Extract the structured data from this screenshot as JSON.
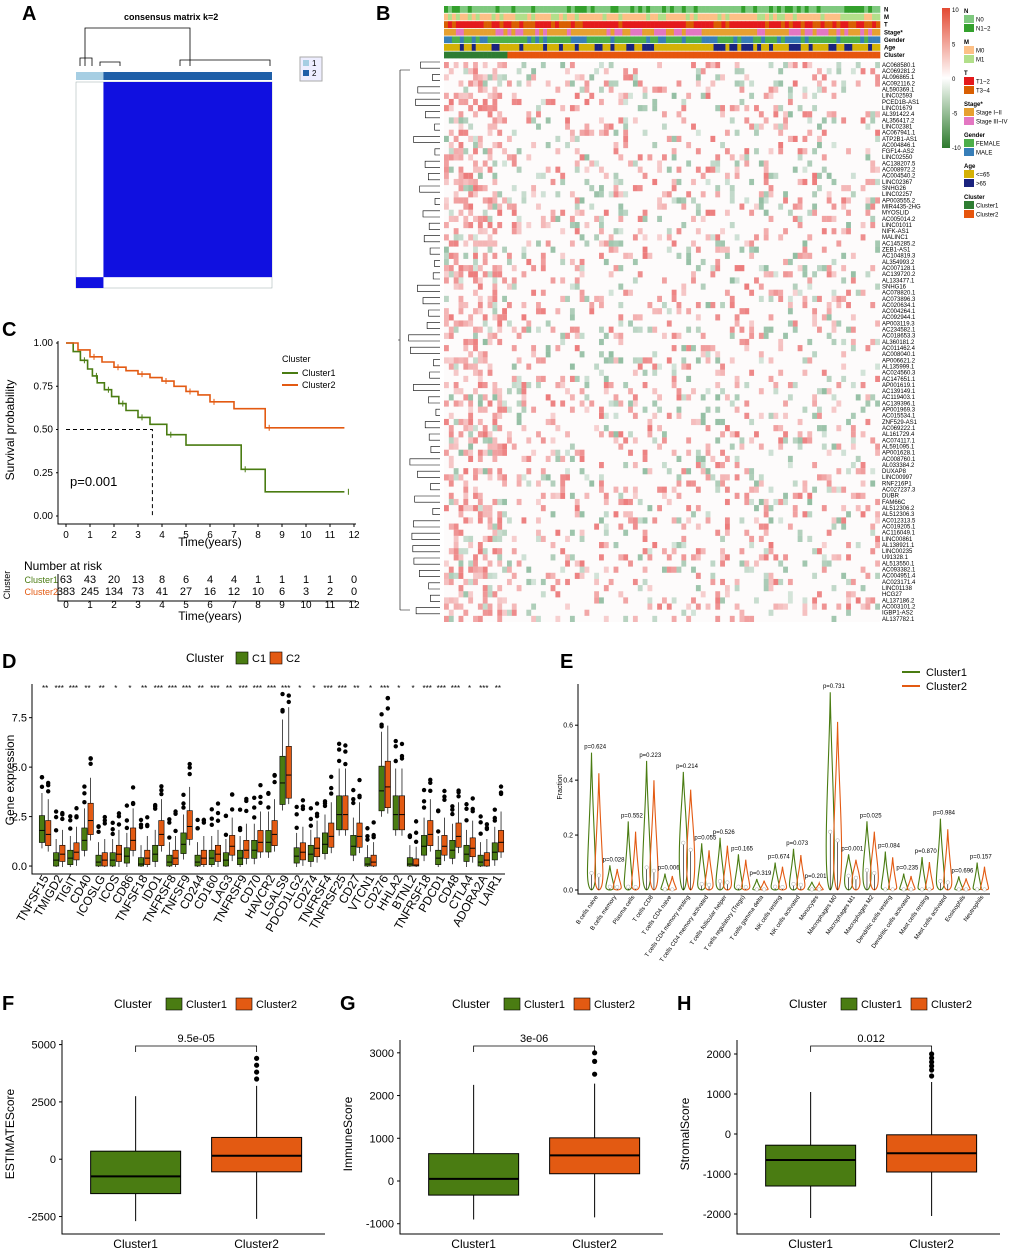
{
  "panels": {
    "A": {
      "letter": "A",
      "title": "consensus matrix k=2",
      "legend": [
        {
          "label": "1",
          "color": "#a6cee3"
        },
        {
          "label": "2",
          "color": "#1f5fa8"
        }
      ],
      "matrix_color": "#1010e0",
      "chart_data": {
        "type": "heatmap",
        "title": "consensus matrix k=2",
        "clusters": [
          {
            "name": "1",
            "fraction": 0.14
          },
          {
            "name": "2",
            "fraction": 0.86
          }
        ],
        "value_range": [
          0,
          1
        ]
      }
    },
    "B": {
      "letter": "B",
      "annotation_tracks": [
        "N",
        "M",
        "T",
        "Stage*",
        "Gender",
        "Age",
        "Cluster"
      ],
      "colorbar": {
        "ticks": [
          "10",
          "5",
          "0",
          "-5",
          "-10"
        ],
        "colors": [
          "#e34a33",
          "#ffffff",
          "#2c7a2c"
        ]
      },
      "legend_groups": [
        {
          "title": "N",
          "items": [
            {
              "label": "N0",
              "color": "#7fc97f"
            },
            {
              "label": "N1~2",
              "color": "#33a02c"
            }
          ]
        },
        {
          "title": "M",
          "items": [
            {
              "label": "M0",
              "color": "#fdc086"
            },
            {
              "label": "M1",
              "color": "#b2df8a"
            }
          ]
        },
        {
          "title": "T",
          "items": [
            {
              "label": "T1~2",
              "color": "#e41a1c"
            },
            {
              "label": "T3~4",
              "color": "#d95f02"
            }
          ]
        },
        {
          "title": "Stage*",
          "items": [
            {
              "label": "Stage I~II",
              "color": "#e6a030"
            },
            {
              "label": "Stage III~IV",
              "color": "#e377c2"
            }
          ]
        },
        {
          "title": "Gender",
          "items": [
            {
              "label": "FEMALE",
              "color": "#4daf4a"
            },
            {
              "label": "MALE",
              "color": "#377eb8"
            }
          ]
        },
        {
          "title": "Age",
          "items": [
            {
              "label": "<=65",
              "color": "#d4b106"
            },
            {
              "label": ">65",
              "color": "#1a237e"
            }
          ]
        },
        {
          "title": "Cluster",
          "items": [
            {
              "label": "Cluster1",
              "color": "#2e7d32"
            },
            {
              "label": "Cluster2",
              "color": "#e6550d"
            }
          ]
        }
      ],
      "genes": [
        "AC068580.1",
        "AC069281.2",
        "AL096865.1",
        "AC092116.2",
        "AL590369.1",
        "LINC02593",
        "PCED1B-AS1",
        "LINC01679",
        "AL391422.4",
        "AL356417.2",
        "LINC02381",
        "AC067941.1",
        "ATP2B1-AS1",
        "AC004846.1",
        "FGF14-AS2",
        "LINC02550",
        "AC138207.5",
        "AC008972.2",
        "AC004540.2",
        "LINC02367",
        "SNHG26",
        "LINC02257",
        "AP003555.2",
        "MIR4435-2HG",
        "MYOSLID",
        "AC005014.2",
        "LINC01011",
        "NIFK-AS1",
        "MALINC1",
        "AC145285.2",
        "ZEB1-AS1",
        "AC104819.3",
        "AL354993.2",
        "AC007128.1",
        "AC139720.2",
        "AL133477.1",
        "SNHG16",
        "AC078820.1",
        "AC073896.3",
        "AC020634.1",
        "AC004264.1",
        "AC092944.1",
        "AP003119.3",
        "AC234582.1",
        "AC018653.3",
        "AL360181.2",
        "AC011462.4",
        "AC008040.1",
        "AP006621.2",
        "AL135999.1",
        "AC024560.3",
        "AC147651.1",
        "AP001619.1",
        "AC139149.1",
        "AC119403.1",
        "AC139396.1",
        "AP001969.3",
        "AC015534.1",
        "ZNF529-AS1",
        "AC069222.1",
        "AL161729.4",
        "AC074117.1",
        "AL591095.1",
        "AP001628.1",
        "AC008760.1",
        "AL033384.2",
        "DUXAP8",
        "LINC00997",
        "RNF216P1",
        "AC027237.3",
        "DUBR",
        "FAM66C",
        "AL512306.2",
        "AL512306.3",
        "AC012313.5",
        "AC019205.1",
        "AC116049.1",
        "LINC00861",
        "AL138921.1",
        "LINC00235",
        "U91328.1",
        "AL513550.1",
        "AC093382.1",
        "AC004951.4",
        "AC023171.4",
        "LINC01138",
        "HCG27",
        "AL137186.2",
        "AC003101.2",
        "IGBP1-AS2",
        "AL137782.1"
      ]
    },
    "C": {
      "letter": "C",
      "ylabel": "Survival probability",
      "xlabel": "Time(years)",
      "legend_title": "Cluster",
      "pvalue": "p=0.001",
      "risk_title": "Number at risk",
      "risk_axis_label": "Cluster",
      "risk_xlabel": "Time(years)",
      "chart_data": {
        "type": "line",
        "xlabel": "Time(years)",
        "ylabel": "Survival probability",
        "xlim": [
          0,
          12
        ],
        "ylim": [
          0,
          1
        ],
        "xticks": [
          0,
          1,
          2,
          3,
          4,
          5,
          6,
          7,
          8,
          9,
          10,
          11,
          12
        ],
        "yticks": [
          "0.00",
          "0.25",
          "0.50",
          "0.75",
          "1.00"
        ],
        "series": [
          {
            "name": "Cluster1",
            "color": "#4a7c12",
            "x": [
              0,
              0.3,
              0.6,
              0.9,
              1.1,
              1.3,
              1.6,
              1.9,
              2.2,
              2.5,
              3.0,
              3.5,
              4.2,
              5.0,
              7.3,
              8.3,
              11.6
            ],
            "y": [
              1.0,
              0.95,
              0.9,
              0.85,
              0.81,
              0.77,
              0.73,
              0.69,
              0.65,
              0.61,
              0.57,
              0.53,
              0.47,
              0.41,
              0.27,
              0.14,
              0.14
            ]
          },
          {
            "name": "Cluster2",
            "color": "#e35a12",
            "x": [
              0,
              0.5,
              1.0,
              1.5,
              2.0,
              2.5,
              3.0,
              3.5,
              4.0,
              4.5,
              5.0,
              5.5,
              6.0,
              7.0,
              8.3,
              11.6
            ],
            "y": [
              1.0,
              0.96,
              0.92,
              0.89,
              0.86,
              0.84,
              0.82,
              0.8,
              0.78,
              0.75,
              0.72,
              0.7,
              0.66,
              0.62,
              0.51,
              0.51
            ]
          }
        ],
        "median_line": {
          "x": 3.6,
          "y": 0.5
        },
        "risk_table": {
          "times": [
            0,
            1,
            2,
            3,
            4,
            5,
            6,
            7,
            8,
            9,
            10,
            11,
            12
          ],
          "Cluster1": [
            63,
            43,
            20,
            13,
            8,
            6,
            4,
            4,
            1,
            1,
            1,
            1,
            0
          ],
          "Cluster2": [
            383,
            245,
            134,
            73,
            41,
            27,
            16,
            12,
            10,
            6,
            3,
            2,
            0
          ]
        }
      }
    },
    "D": {
      "letter": "D",
      "legend_title": "Cluster",
      "ylabel": "Gene expression",
      "chart_data": {
        "type": "bar",
        "subtype": "boxplot",
        "ylabel": "Gene expression",
        "ylim": [
          -0.2,
          9
        ],
        "yticks": [
          "0.0",
          "2.5",
          "5.0",
          "7.5"
        ],
        "series": [
          {
            "name": "C1",
            "color": "#4a7c12"
          },
          {
            "name": "C2",
            "color": "#e35a12"
          }
        ],
        "categories": [
          "TNFSF15",
          "TMIGD2",
          "TIGIT",
          "CD40",
          "ICOSLG",
          "ICOS",
          "CD86",
          "TNFSF18",
          "IDO1",
          "TNFRSF8",
          "TNFSF9",
          "CD244",
          "CD160",
          "LAG3",
          "TNFRSF9",
          "CD70",
          "HAVCR2",
          "LGALS9",
          "PDCD1LG2",
          "CD274",
          "TNFRSF4",
          "TNFRSF25",
          "CD27",
          "VTCN1",
          "CD276",
          "HHLA2",
          "BTNL2",
          "TNFRSF18",
          "PDCD1",
          "CD48",
          "CTLA4",
          "ADORA2A",
          "LAIR1"
        ],
        "significance": [
          "**",
          "***",
          "***",
          "**",
          "**",
          "*",
          "*",
          "**",
          "***",
          "***",
          "***",
          "**",
          "***",
          "**",
          "***",
          "***",
          "***",
          "***",
          "*",
          "*",
          "***",
          "***",
          "**",
          "*",
          "***",
          "*",
          "*",
          "***",
          "***",
          "***",
          "*",
          "***",
          "**"
        ],
        "C1_median": [
          1.8,
          0.3,
          0.4,
          1.3,
          0.2,
          0.3,
          0.5,
          0.1,
          0.6,
          0.2,
          1.1,
          0.2,
          0.4,
          0.3,
          0.4,
          0.8,
          1.2,
          4.2,
          0.5,
          0.6,
          1.1,
          2.6,
          1.0,
          0.1,
          3.8,
          2.6,
          0.1,
          1.0,
          0.4,
          0.8,
          0.6,
          0.2,
          0.7
        ],
        "C2_median": [
          1.6,
          0.6,
          0.7,
          2.3,
          0.3,
          0.6,
          1.3,
          0.4,
          1.6,
          0.4,
          2.0,
          0.4,
          0.6,
          1.0,
          0.8,
          1.2,
          1.6,
          4.6,
          0.7,
          0.9,
          1.5,
          2.6,
          1.5,
          0.2,
          4.0,
          2.6,
          0.05,
          1.6,
          1.0,
          1.5,
          0.9,
          0.3,
          1.2
        ]
      }
    },
    "E": {
      "letter": "E",
      "ylabel": "Fraction",
      "chart_data": {
        "type": "area",
        "subtype": "violin",
        "ylabel": "Fraction",
        "ylim": [
          0,
          0.75
        ],
        "yticks": [
          "0.0",
          "0.2",
          "0.4",
          "0.6"
        ],
        "series": [
          {
            "name": "Cluster1",
            "color": "#4a7c12"
          },
          {
            "name": "Cluster2",
            "color": "#e35a12"
          }
        ],
        "categories": [
          "B cells naive",
          "B cells memory",
          "Plasma cells",
          "T cells CD8",
          "T cells CD4 naive",
          "T cells CD4 memory resting",
          "T cells CD4 memory activated",
          "T cells follicular helper",
          "T cells regulatory (Tregs)",
          "T cells gamma delta",
          "NK cells resting",
          "NK cells activated",
          "Monocytes",
          "Macrophages M0",
          "Macrophages M1",
          "Macrophages M2",
          "Dendritic cells resting",
          "Dendritic cells activated",
          "Mast cells resting",
          "Mast cells activated",
          "Eosinophils",
          "Neutrophils"
        ],
        "pvalues": [
          "p=0.624",
          "p=0.028",
          "p=0.552",
          "p=0.223",
          "p=0.006",
          "p=0.214",
          "p=0.055",
          "p=0.526",
          "p=0.165",
          "p=0.319",
          "p=0.674",
          "p=0.073",
          "p=0.201",
          "p=0.731",
          "p=0.001",
          "p=0.025",
          "p=0.084",
          "p=0.235",
          "p=0.870",
          "p=0.984",
          "p=0.696",
          "p=0.157"
        ],
        "max_values": [
          0.5,
          0.09,
          0.25,
          0.47,
          0.06,
          0.43,
          0.17,
          0.19,
          0.13,
          0.04,
          0.1,
          0.15,
          0.03,
          0.72,
          0.13,
          0.25,
          0.14,
          0.06,
          0.12,
          0.26,
          0.05,
          0.1
        ],
        "medians": [
          0.06,
          0.01,
          0.01,
          0.08,
          0.0,
          0.17,
          0.02,
          0.03,
          0.01,
          0.0,
          0.01,
          0.02,
          0.0,
          0.21,
          0.05,
          0.07,
          0.0,
          0.0,
          0.0,
          0.03,
          0.0,
          0.0
        ]
      }
    },
    "F": {
      "letter": "F",
      "legend_title": "Cluster",
      "ylabel": "ESTIMATEScore",
      "pvalue": "9.5e-05",
      "chart_data": {
        "type": "bar",
        "subtype": "boxplot",
        "ylabel": "ESTIMATEScore",
        "categories": [
          "Cluster1",
          "Cluster2"
        ],
        "ylim": [
          -3000,
          5200
        ],
        "yticks": [
          -2500,
          0,
          2500,
          5000
        ],
        "boxes": [
          {
            "name": "Cluster1",
            "color": "#4a7c12",
            "min": -2700,
            "q1": -1500,
            "median": -750,
            "q3": 350,
            "max": 2750,
            "outliers": []
          },
          {
            "name": "Cluster2",
            "color": "#e35a12",
            "min": -2600,
            "q1": -550,
            "median": 150,
            "q3": 950,
            "max": 3200,
            "outliers": [
              3500,
              3800,
              4100,
              4400
            ]
          }
        ]
      }
    },
    "G": {
      "letter": "G",
      "legend_title": "Cluster",
      "ylabel": "ImmuneScore",
      "pvalue": "3e-06",
      "chart_data": {
        "type": "bar",
        "subtype": "boxplot",
        "ylabel": "ImmuneScore",
        "categories": [
          "Cluster1",
          "Cluster2"
        ],
        "ylim": [
          -1100,
          3300
        ],
        "yticks": [
          -1000,
          0,
          1000,
          2000,
          3000
        ],
        "boxes": [
          {
            "name": "Cluster1",
            "color": "#4a7c12",
            "min": -900,
            "q1": -330,
            "median": 50,
            "q3": 640,
            "max": 2250,
            "outliers": []
          },
          {
            "name": "Cluster2",
            "color": "#e35a12",
            "min": -850,
            "q1": 170,
            "median": 600,
            "q3": 1010,
            "max": 2280,
            "outliers": [
              2500,
              2800,
              3000
            ]
          }
        ]
      }
    },
    "H": {
      "letter": "H",
      "legend_title": "Cluster",
      "ylabel": "StromalScore",
      "pvalue": "0.012",
      "chart_data": {
        "type": "bar",
        "subtype": "boxplot",
        "ylabel": "StromalScore",
        "categories": [
          "Cluster1",
          "Cluster2"
        ],
        "ylim": [
          -2350,
          2350
        ],
        "yticks": [
          -2000,
          -1000,
          0,
          1000,
          2000
        ],
        "boxes": [
          {
            "name": "Cluster1",
            "color": "#4a7c12",
            "min": -2100,
            "q1": -1300,
            "median": -650,
            "q3": -280,
            "max": 1050,
            "outliers": []
          },
          {
            "name": "Cluster2",
            "color": "#e35a12",
            "min": -2050,
            "q1": -950,
            "median": -480,
            "q3": -20,
            "max": 1300,
            "outliers": [
              1450,
              1600,
              1700,
              1800,
              1900,
              2000
            ]
          }
        ]
      }
    }
  }
}
